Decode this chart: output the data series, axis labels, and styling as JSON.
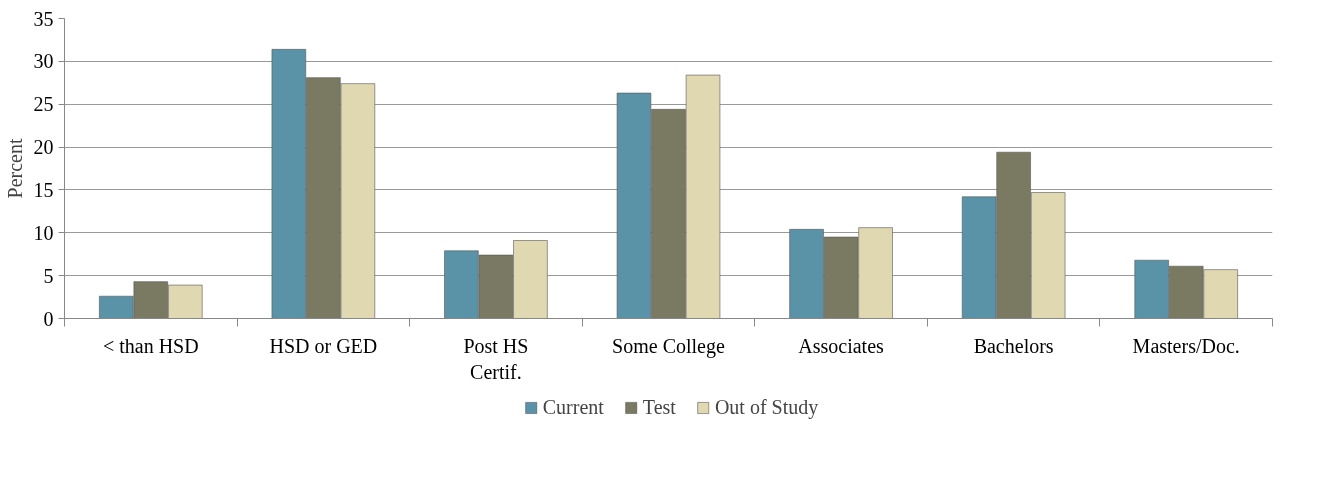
{
  "chart_data": {
    "type": "bar",
    "ylabel": "Percent",
    "categories": [
      "< than HSD",
      "HSD or GED",
      "Post HS Certif.",
      "Some College",
      "Associates",
      "Bachelors",
      "Masters/Doc."
    ],
    "series": [
      {
        "name": "Current",
        "color": "#5a93a8",
        "values": [
          2.6,
          31.4,
          7.9,
          26.3,
          10.4,
          14.2,
          6.8
        ]
      },
      {
        "name": "Test",
        "color": "#7a7a62",
        "values": [
          4.3,
          28.1,
          7.4,
          24.4,
          9.5,
          19.4,
          6.1
        ]
      },
      {
        "name": "Out of Study",
        "color": "#e0d8b0",
        "values": [
          3.9,
          27.4,
          9.1,
          28.4,
          10.6,
          14.7,
          5.7
        ]
      }
    ],
    "ylim": [
      0,
      35
    ],
    "yticks": [
      0,
      5,
      10,
      15,
      20,
      25,
      30,
      35
    ],
    "grid": "y",
    "legend": "bottom"
  }
}
